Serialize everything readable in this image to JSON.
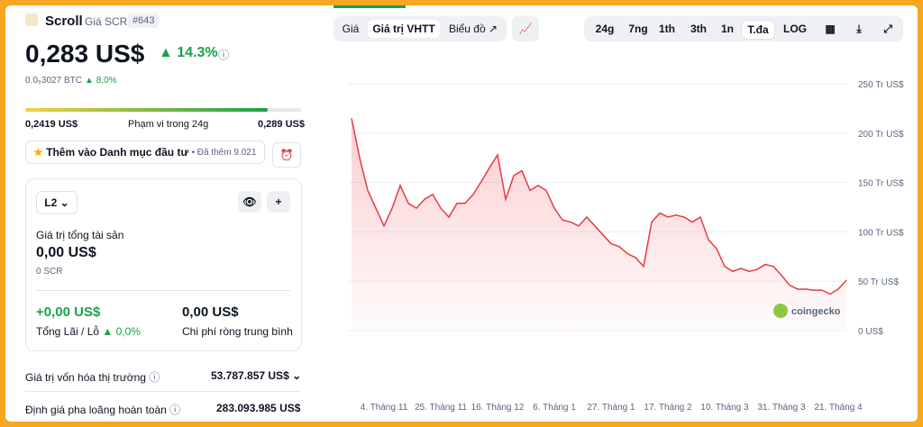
{
  "header": {
    "name": "Scroll",
    "subtitle": "Giá SCR",
    "rank": "#643",
    "price": "0,283 US$",
    "change": "14.3%",
    "btc_price": "0.0₅3027 BTC",
    "btc_change": "8.0%"
  },
  "range": {
    "low": "0,2419 US$",
    "label": "Phạm vi trong 24g",
    "high": "0,289 US$"
  },
  "portfolio": {
    "button": "Thêm vào Danh mục đầu tư",
    "added": "• Đã thêm 9.021",
    "tag": "L2",
    "total_label": "Giá trị tổng tài sản",
    "total_value": "0,00 US$",
    "total_coins": "0 SCR",
    "pnl_value": "+0,00 US$",
    "pnl_label": "Tổng Lãi / Lỗ",
    "pnl_pct": "0,0%",
    "cost_value": "0,00 US$",
    "cost_label": "Chi phí ròng trung bình"
  },
  "stats": [
    {
      "label": "Giá trị vốn hóa thị trường",
      "value": "53.787.857 US$"
    },
    {
      "label": "Định giá pha loãng hoàn toàn",
      "value": "283.093.985 US$"
    }
  ],
  "tabs": [
    "Giá",
    "Giá trị VHTT",
    "Biểu đồ"
  ],
  "ranges": [
    "24g",
    "7ng",
    "1th",
    "3th",
    "1n",
    "T.đa",
    "LOG"
  ],
  "watermark": "coingecko",
  "chart_data": {
    "type": "line",
    "categories": [
      null,
      null,
      null,
      null,
      "4. Tháng 11",
      null,
      null,
      null,
      null,
      null,
      null,
      "25. Tháng 11",
      null,
      null,
      null,
      null,
      null,
      null,
      "16. Tháng 12",
      null,
      null,
      null,
      null,
      null,
      null,
      "6. Tháng 1",
      null,
      null,
      null,
      null,
      null,
      null,
      "27. Tháng 1",
      null,
      null,
      null,
      null,
      null,
      null,
      "17. Tháng 2",
      null,
      null,
      null,
      null,
      null,
      null,
      "10. Tháng 3",
      null,
      null,
      null,
      null,
      null,
      null,
      "31. Tháng 3",
      null,
      null,
      null,
      null,
      null,
      null,
      "21. Tháng 4",
      null
    ],
    "series": [
      {
        "name": "Giá trị VHTT",
        "color": "#ea3943",
        "values": [
          215,
          175,
          142,
          124,
          106,
          124,
          147,
          129,
          124,
          133,
          138,
          124,
          115,
          129,
          129,
          138,
          151,
          165,
          178,
          133,
          157,
          162,
          142,
          147,
          142,
          124,
          112,
          110,
          106,
          115,
          106,
          97,
          88,
          85,
          78,
          74,
          65,
          110,
          119,
          115,
          117,
          115,
          110,
          115,
          92,
          83,
          65,
          60,
          63,
          60,
          62,
          67,
          65,
          56,
          46,
          42,
          42,
          41,
          41,
          37,
          42,
          51
        ]
      }
    ],
    "ylim": [
      0,
      250
    ],
    "yticks": [
      {
        "value": 0,
        "label": "0 US$"
      },
      {
        "value": 50,
        "label": "50 Tr US$"
      },
      {
        "value": 100,
        "label": "100 Tr US$"
      },
      {
        "value": 150,
        "label": "150 Tr US$"
      },
      {
        "value": 200,
        "label": "200 Tr US$"
      },
      {
        "value": 250,
        "label": "250 Tr US$"
      }
    ],
    "grid": true
  }
}
